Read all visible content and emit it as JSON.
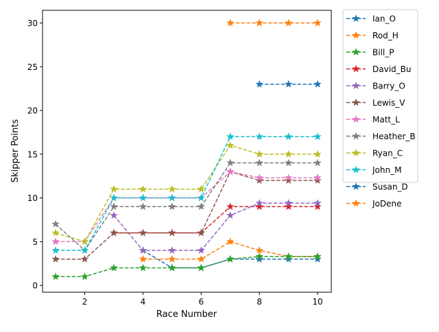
{
  "chart_data": {
    "type": "line",
    "title": "",
    "xlabel": "Race Number",
    "ylabel": "Skipper Points",
    "xlim": [
      0.55,
      10.47
    ],
    "ylim": [
      -0.78,
      31.45
    ],
    "xticks": [
      2,
      4,
      6,
      8,
      10
    ],
    "yticks": [
      0,
      5,
      10,
      15,
      20,
      25,
      30
    ],
    "grid": false,
    "legend_placement": "outside-right-top",
    "marker": "star",
    "linestyle": "dashed",
    "x": [
      1,
      2,
      3,
      4,
      5,
      6,
      7,
      8,
      9,
      10
    ],
    "series": [
      {
        "name": "Ian_O",
        "color": "#1f77b4",
        "values": [
          null,
          null,
          null,
          4,
          2,
          2,
          3,
          3,
          3,
          3
        ]
      },
      {
        "name": "Rod_H",
        "color": "#ff7f0e",
        "values": [
          null,
          null,
          null,
          3,
          3,
          3,
          5,
          4,
          3.3,
          3.3
        ]
      },
      {
        "name": "Bill_P",
        "color": "#2ca02c",
        "values": [
          1,
          1,
          2,
          2,
          2,
          2,
          3,
          3.3,
          3.3,
          3.3
        ]
      },
      {
        "name": "David_Bu",
        "color": "#d62728",
        "values": [
          null,
          null,
          6,
          6,
          6,
          6,
          9,
          9,
          9,
          9
        ]
      },
      {
        "name": "Barry_O",
        "color": "#9467bd",
        "values": [
          null,
          null,
          8,
          4,
          4,
          4,
          8,
          9.4,
          9.4,
          9.4
        ]
      },
      {
        "name": "Lewis_V",
        "color": "#8c564b",
        "values": [
          3,
          3,
          6,
          6,
          6,
          6,
          13,
          12,
          12,
          12
        ]
      },
      {
        "name": "Matt_L",
        "color": "#e377c2",
        "values": [
          5,
          5,
          10,
          10,
          10,
          10,
          13,
          12.3,
          12.3,
          12.3
        ]
      },
      {
        "name": "Heather_B",
        "color": "#7f7f7f",
        "values": [
          7,
          4,
          9,
          9,
          9,
          9,
          14,
          14,
          14,
          14
        ]
      },
      {
        "name": "Ryan_C",
        "color": "#bcbd22",
        "values": [
          6,
          5,
          11,
          11,
          11,
          11,
          16,
          15,
          15,
          15
        ]
      },
      {
        "name": "John_M",
        "color": "#17becf",
        "values": [
          4,
          4,
          10,
          10,
          10,
          10,
          17,
          17,
          17,
          17
        ]
      },
      {
        "name": "Susan_D",
        "color": "#1f77b4",
        "values": [
          null,
          null,
          null,
          null,
          null,
          null,
          null,
          23,
          23,
          23
        ]
      },
      {
        "name": "JoDene",
        "color": "#ff7f0e",
        "values": [
          null,
          null,
          null,
          null,
          null,
          null,
          30,
          30,
          30,
          30
        ]
      }
    ]
  }
}
